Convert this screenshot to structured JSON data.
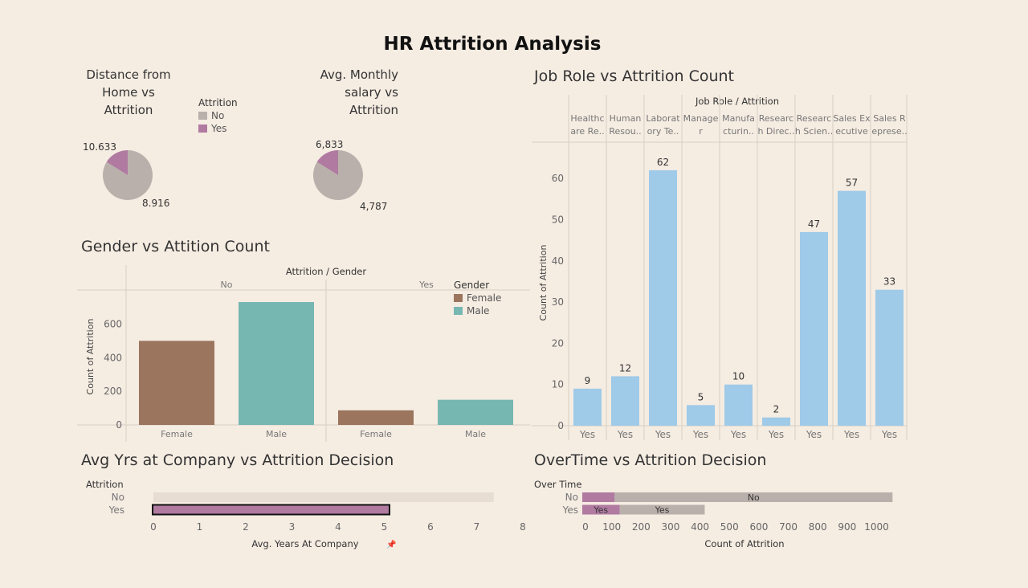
{
  "dashboard": {
    "title": "HR Attrition Analysis"
  },
  "colors": {
    "no": "#bab0ab",
    "yes": "#b07aa1",
    "female": "#9c755f",
    "male": "#76b7b2",
    "jobbar": "#9fcae8",
    "grid": "#d8cfc4",
    "selection_border": "#111111"
  },
  "chart_data": [
    {
      "id": "distance_pie",
      "type": "pie",
      "title": "Distance from Home vs Attrition",
      "title_lines": [
        "Distance from",
        "Home vs",
        "Attrition"
      ],
      "legend_title": "Attrition",
      "slices": [
        {
          "name": "No",
          "value": 8.916,
          "label": "8.916"
        },
        {
          "name": "Yes",
          "value": 10.633,
          "label": "10.633"
        }
      ],
      "note": "Visible Yes wedge is small relative to No"
    },
    {
      "id": "salary_pie",
      "type": "pie",
      "title": "Avg. Monthly salary vs Attrition",
      "title_lines": [
        "Avg. Monthly",
        "salary vs",
        "Attrition"
      ],
      "slices": [
        {
          "name": "No",
          "value": 6833,
          "label": "6,833"
        },
        {
          "name": "Yes",
          "value": 4787,
          "label": "4,787"
        }
      ]
    },
    {
      "id": "legend_attrition",
      "type": "legend",
      "title": "Attrition",
      "items": [
        "No",
        "Yes"
      ]
    },
    {
      "id": "gender_bar",
      "type": "bar",
      "title": "Gender vs Attition Count",
      "header": "Attrition / Gender",
      "panels": [
        "No",
        "Yes"
      ],
      "categories": [
        "Female",
        "Male"
      ],
      "series": [
        {
          "panel": "No",
          "values": [
            501,
            732
          ]
        },
        {
          "panel": "Yes",
          "values": [
            87,
            150
          ]
        }
      ],
      "ylabel": "Count of Attrition",
      "yticks": [
        0,
        200,
        400,
        600
      ],
      "ylim": [
        0,
        780
      ],
      "legend": {
        "title": "Gender",
        "items": [
          "Female",
          "Male"
        ]
      }
    },
    {
      "id": "jobrole_bar",
      "type": "bar",
      "title": "Job Role vs Attrition Count",
      "header": "Job Role / Attrition",
      "categories": [
        [
          "Healthc",
          "are Re.."
        ],
        [
          "Human",
          "Resou.."
        ],
        [
          "Laborat",
          "ory Te.."
        ],
        [
          "Manage",
          "r"
        ],
        [
          "Manufa",
          "cturin.."
        ],
        [
          "Researc",
          "h Direc.."
        ],
        [
          "Researc",
          "h Scien.."
        ],
        [
          "Sales Ex",
          "ecutive"
        ],
        [
          "Sales R",
          "eprese.."
        ]
      ],
      "xlabels": [
        "Yes",
        "Yes",
        "Yes",
        "Yes",
        "Yes",
        "Yes",
        "Yes",
        "Yes",
        "Yes"
      ],
      "values": [
        9,
        12,
        62,
        5,
        10,
        2,
        47,
        57,
        33
      ],
      "ylabel": "Count of Attrition",
      "yticks": [
        0,
        10,
        20,
        30,
        40,
        50,
        60
      ],
      "ylim": [
        0,
        70
      ]
    },
    {
      "id": "yrs_bar",
      "type": "bar",
      "orientation": "horizontal",
      "title": "Avg Yrs at Company vs Attrition Decision",
      "row_header": "Attrition",
      "categories": [
        "No",
        "Yes"
      ],
      "values": [
        7.37,
        5.13
      ],
      "xlabel": "Avg. Years At Company",
      "xticks": [
        0,
        1,
        2,
        3,
        4,
        5,
        6,
        7,
        8
      ],
      "xlim": [
        0,
        8
      ]
    },
    {
      "id": "overtime_bar",
      "type": "bar",
      "orientation": "horizontal",
      "stacked": true,
      "title": "OverTime vs Attrition Decision",
      "row_header": "Over Time",
      "categories": [
        "No",
        "Yes"
      ],
      "series": [
        {
          "name": "Yes",
          "values": [
            110,
            127
          ]
        },
        {
          "name": "No",
          "values": [
            944,
            289
          ]
        }
      ],
      "bar_labels": [
        [
          "",
          "No"
        ],
        [
          "Yes",
          "Yes"
        ]
      ],
      "xlabel": "Count of Attrition",
      "xticks": [
        0,
        100,
        200,
        300,
        400,
        500,
        600,
        700,
        800,
        900,
        1000
      ],
      "xlim": [
        0,
        1100
      ]
    }
  ]
}
